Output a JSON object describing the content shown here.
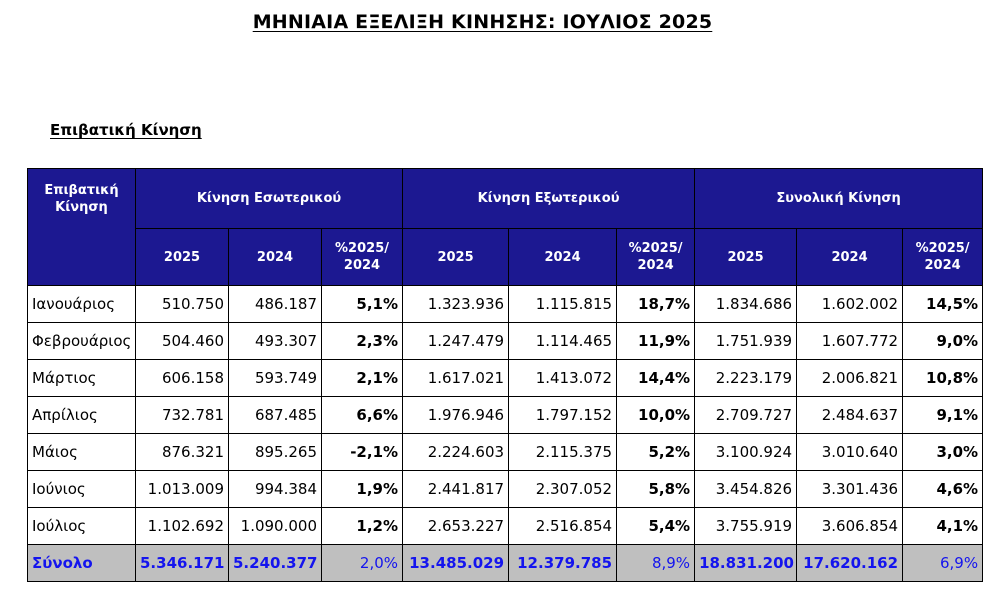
{
  "title": "ΜΗΝΙΑΙΑ ΕΞΕΛΙΞΗ ΚΙΝΗΣΗΣ: ΙΟΥΛΙΟΣ 2025",
  "section": "Επιβατική Κίνηση",
  "table": {
    "corner_header": "Επιβατική Κίνηση",
    "groups": [
      "Κίνηση Εσωτερικού",
      "Κίνηση Εξωτερικού",
      "Συνολική Κίνηση"
    ],
    "subheaders": [
      "2025",
      "2024",
      "%2025/ 2024"
    ],
    "rows": [
      {
        "month": "Ιανουάριος",
        "values": [
          "510.750",
          "486.187",
          "5,1%",
          "1.323.936",
          "1.115.815",
          "18,7%",
          "1.834.686",
          "1.602.002",
          "14,5%"
        ]
      },
      {
        "month": "Φεβρουάριος",
        "values": [
          "504.460",
          "493.307",
          "2,3%",
          "1.247.479",
          "1.114.465",
          "11,9%",
          "1.751.939",
          "1.607.772",
          "9,0%"
        ]
      },
      {
        "month": "Μάρτιος",
        "values": [
          "606.158",
          "593.749",
          "2,1%",
          "1.617.021",
          "1.413.072",
          "14,4%",
          "2.223.179",
          "2.006.821",
          "10,8%"
        ]
      },
      {
        "month": "Απρίλιος",
        "values": [
          "732.781",
          "687.485",
          "6,6%",
          "1.976.946",
          "1.797.152",
          "10,0%",
          "2.709.727",
          "2.484.637",
          "9,1%"
        ]
      },
      {
        "month": "Μάιος",
        "values": [
          "876.321",
          "895.265",
          "-2,1%",
          "2.224.603",
          "2.115.375",
          "5,2%",
          "3.100.924",
          "3.010.640",
          "3,0%"
        ]
      },
      {
        "month": "Ιούνιος",
        "values": [
          "1.013.009",
          "994.384",
          "1,9%",
          "2.441.817",
          "2.307.052",
          "5,8%",
          "3.454.826",
          "3.301.436",
          "4,6%"
        ]
      },
      {
        "month": "Ιούλιος",
        "values": [
          "1.102.692",
          "1.090.000",
          "1,2%",
          "2.653.227",
          "2.516.854",
          "5,4%",
          "3.755.919",
          "3.606.854",
          "4,1%"
        ]
      }
    ],
    "total": {
      "label": "Σύνολο",
      "values": [
        "5.346.171",
        "5.240.377",
        "2,0%",
        "13.485.029",
        "12.379.785",
        "8,9%",
        "18.831.200",
        "17.620.162",
        "6,9%"
      ]
    }
  },
  "colors": {
    "header_bg": "#1c1891",
    "header_text": "#ffffff",
    "total_bg": "#bfbfbf",
    "total_text": "#1414ee"
  }
}
